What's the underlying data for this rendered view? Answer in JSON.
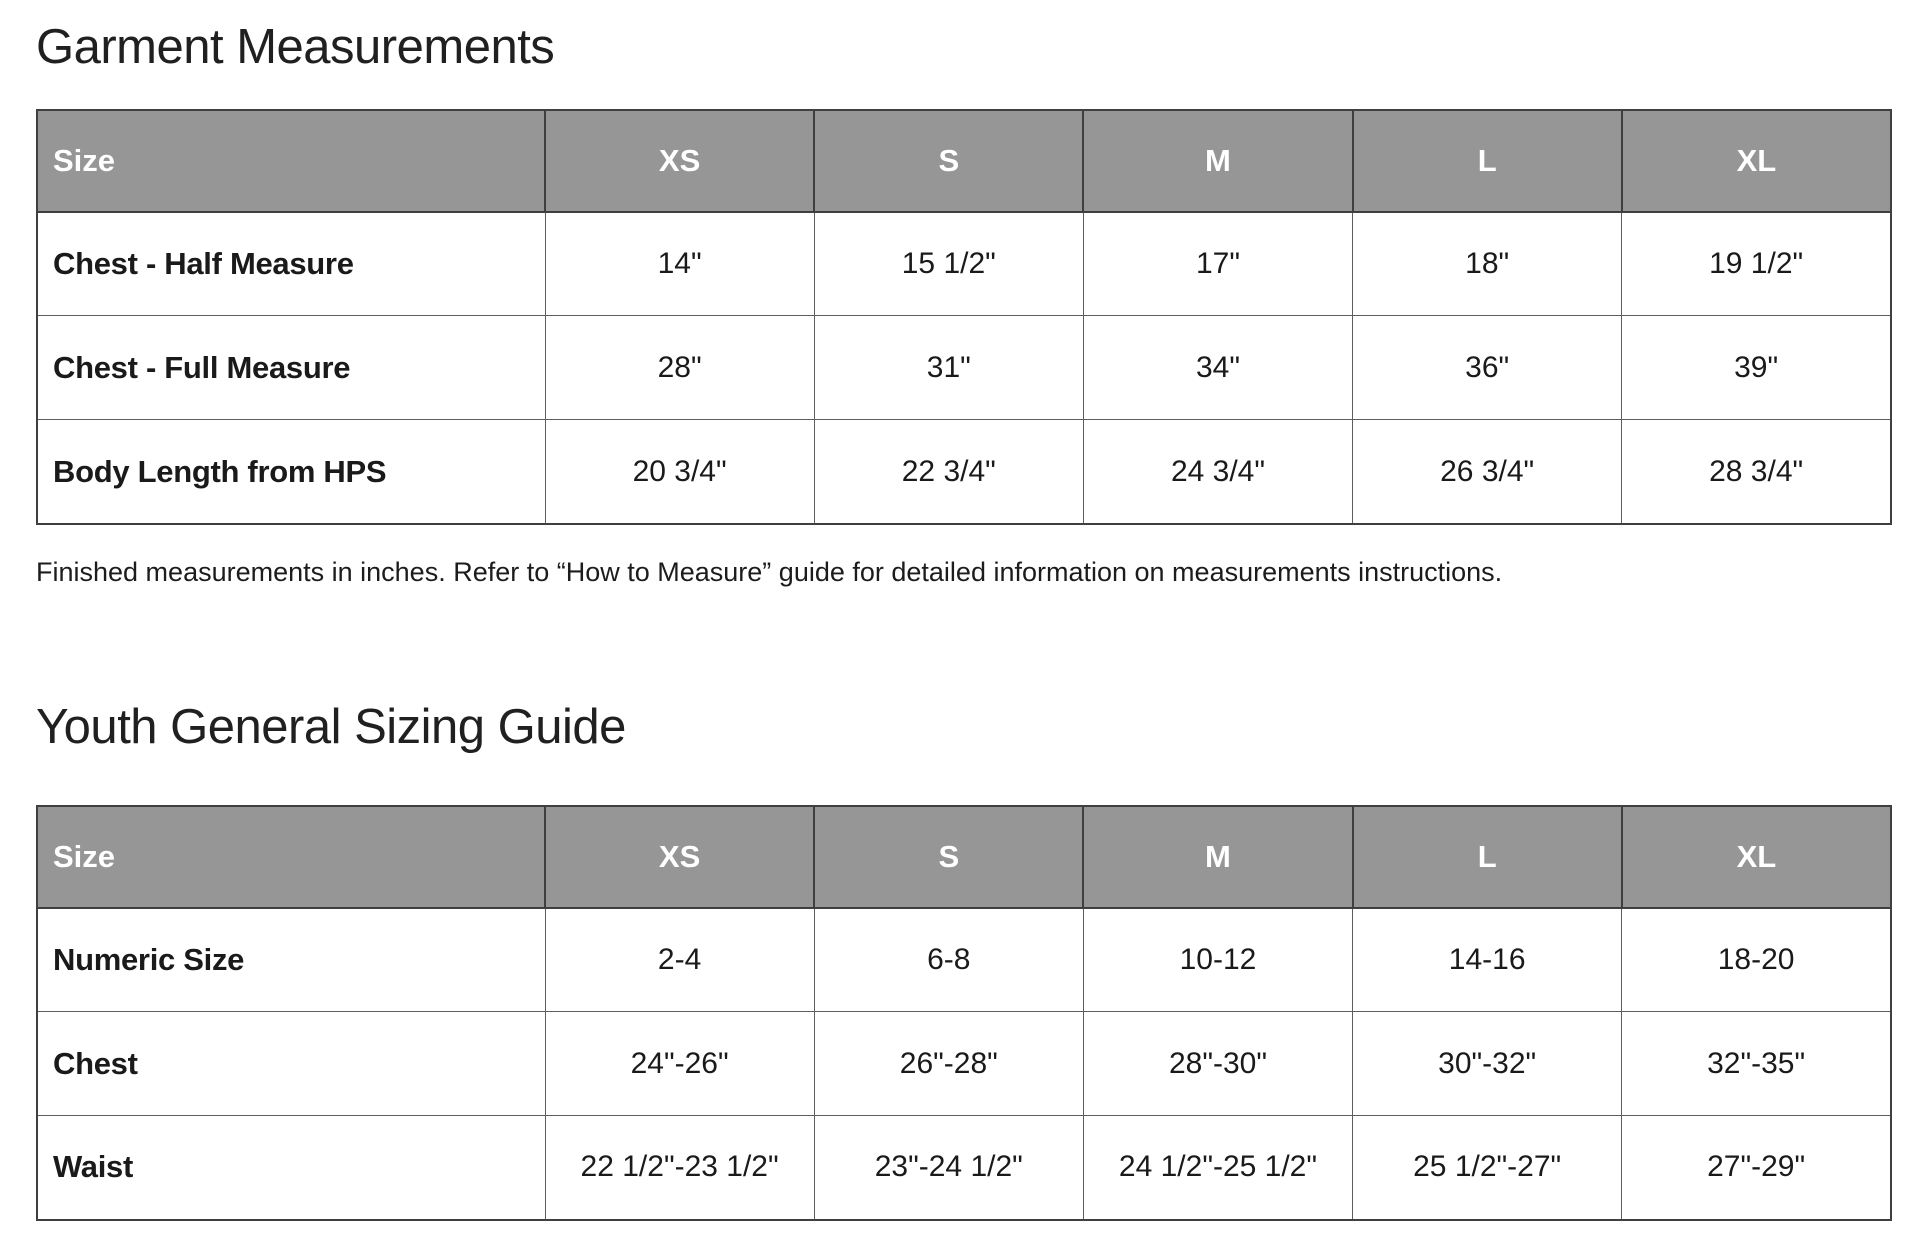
{
  "colors": {
    "header_bg": "#969696",
    "header_text": "#ffffff",
    "border_dark": "#3f3f3f",
    "border_light": "#5e5e5e",
    "text": "#1a1a1a",
    "page_bg": "#ffffff"
  },
  "sections": [
    {
      "title": "Garment Measurements",
      "note": "Finished measurements in inches. Refer to “How to Measure” guide for detailed information on measurements instructions.",
      "table": {
        "columns": [
          "Size",
          "XS",
          "S",
          "M",
          "L",
          "XL"
        ],
        "rows": [
          {
            "label": "Chest - Half Measure",
            "values": [
              "14\"",
              "15 1/2\"",
              "17\"",
              "18\"",
              "19 1/2\""
            ]
          },
          {
            "label": "Chest - Full Measure",
            "values": [
              "28\"",
              "31\"",
              "34\"",
              "36\"",
              "39\""
            ]
          },
          {
            "label": "Body Length from HPS",
            "values": [
              "20 3/4\"",
              "22 3/4\"",
              "24 3/4\"",
              "26 3/4\"",
              "28 3/4\""
            ]
          }
        ]
      }
    },
    {
      "title": "Youth General Sizing Guide",
      "table": {
        "columns": [
          "Size",
          "XS",
          "S",
          "M",
          "L",
          "XL"
        ],
        "rows": [
          {
            "label": "Numeric Size",
            "values": [
              "2-4",
              "6-8",
              "10-12",
              "14-16",
              "18-20"
            ]
          },
          {
            "label": "Chest",
            "values": [
              "24\"-26\"",
              "26\"-28\"",
              "28\"-30\"",
              "30\"-32\"",
              "32\"-35\""
            ]
          },
          {
            "label": "Waist",
            "values": [
              "22 1/2\"-23 1/2\"",
              "23\"-24 1/2\"",
              "24 1/2\"-25 1/2\"",
              "25 1/2\"-27\"",
              "27\"-29\""
            ]
          }
        ]
      }
    }
  ]
}
